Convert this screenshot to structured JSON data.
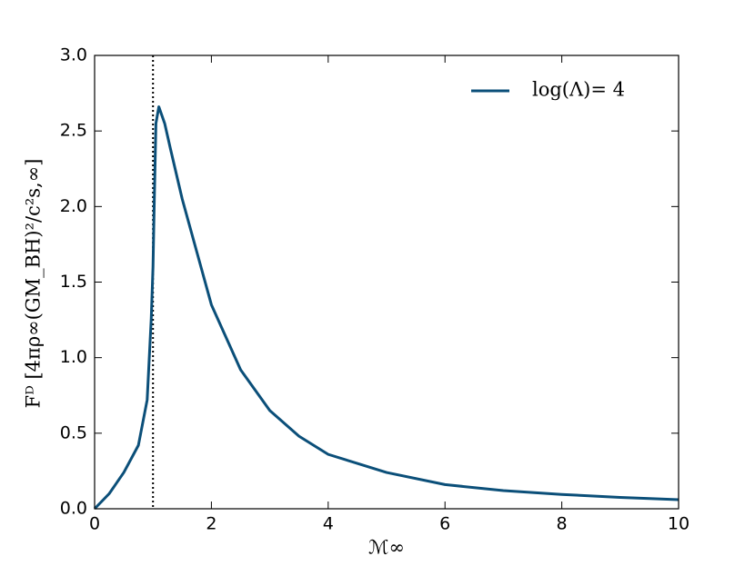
{
  "chart_data": {
    "type": "line",
    "x_label": "ℳ∞",
    "y_label": "Fᴰ  [4πρ∞(GM_BH)²/c²s,∞]",
    "x": [
      0,
      0.25,
      0.5,
      0.75,
      0.9,
      0.97,
      1.0,
      1.02,
      1.05,
      1.1,
      1.2,
      1.3,
      1.5,
      1.75,
      2.0,
      2.5,
      3.0,
      3.5,
      4.0,
      5.0,
      6.0,
      7.0,
      8.0,
      9.0,
      10.0
    ],
    "series": [
      {
        "name": "log(Λ)= 4",
        "color": "#0b4f79",
        "values": [
          0,
          0.1,
          0.24,
          0.42,
          0.72,
          1.26,
          1.6,
          2.0,
          2.55,
          2.66,
          2.55,
          2.38,
          2.05,
          1.7,
          1.35,
          0.92,
          0.65,
          0.48,
          0.36,
          0.24,
          0.16,
          0.12,
          0.095,
          0.075,
          0.06
        ]
      }
    ],
    "vline": 1,
    "xlim": [
      0,
      10
    ],
    "ylim": [
      0,
      3
    ],
    "xticks": [
      0,
      2,
      4,
      6,
      8,
      10
    ],
    "yticks": [
      {
        "value": 0,
        "label": "0.0"
      },
      0.5,
      {
        "value": 1,
        "label": "1.0"
      },
      1.5,
      {
        "value": 2,
        "label": "2.0"
      },
      2.5,
      {
        "value": 3,
        "label": "3.0"
      }
    ],
    "grid": false,
    "legend": "upper right"
  }
}
